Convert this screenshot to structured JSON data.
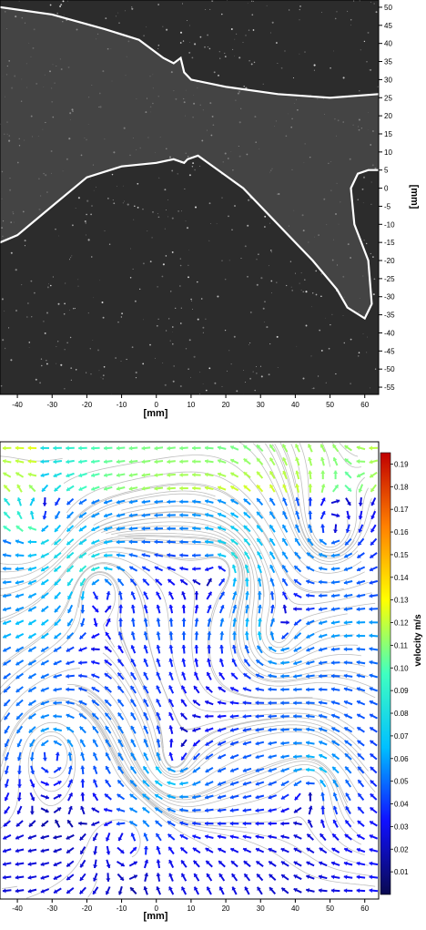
{
  "chart_data": [
    {
      "type": "image",
      "title": "",
      "xlabel": "[mm]",
      "ylabel": "[mm]",
      "xlim": [
        -45,
        64
      ],
      "ylim": [
        -57,
        52
      ],
      "x_ticks": [
        -40,
        -30,
        -20,
        -10,
        0,
        10,
        20,
        30,
        40,
        50,
        60
      ],
      "y_ticks": [
        50,
        45,
        40,
        35,
        30,
        25,
        20,
        15,
        10,
        5,
        0,
        -5,
        -10,
        -15,
        -20,
        -25,
        -30,
        -35,
        -40,
        -45,
        -50,
        -55
      ],
      "background": "#2c2c2c",
      "outline_color": "#ffffff",
      "upper_outline": [
        [
          -45,
          50
        ],
        [
          -30,
          48
        ],
        [
          -15,
          44
        ],
        [
          -5,
          41
        ],
        [
          2,
          36
        ],
        [
          5,
          34.5
        ],
        [
          7,
          36
        ],
        [
          8,
          32
        ],
        [
          10,
          30
        ],
        [
          20,
          28
        ],
        [
          35,
          26
        ],
        [
          50,
          25
        ],
        [
          64,
          26
        ]
      ],
      "lower_outline": [
        [
          -45,
          -15
        ],
        [
          -40,
          -13
        ],
        [
          -30,
          -5
        ],
        [
          -20,
          3
        ],
        [
          -10,
          6
        ],
        [
          0,
          7
        ],
        [
          5,
          8
        ],
        [
          8,
          7
        ],
        [
          9,
          8
        ],
        [
          12,
          9
        ],
        [
          25,
          0
        ],
        [
          35,
          -10
        ],
        [
          45,
          -20
        ],
        [
          52,
          -28
        ],
        [
          55,
          -33
        ],
        [
          60,
          -36
        ],
        [
          62,
          -32
        ],
        [
          61,
          -20
        ],
        [
          57,
          -10
        ],
        [
          56,
          0
        ],
        [
          58,
          4
        ],
        [
          61,
          5
        ],
        [
          64,
          5
        ]
      ]
    },
    {
      "type": "vector_field",
      "title": "",
      "xlabel": "[mm]",
      "ylabel": "",
      "xlim": [
        -45,
        64
      ],
      "ylim": [
        -57,
        52
      ],
      "x_ticks": [
        -40,
        -30,
        -20,
        -10,
        0,
        10,
        20,
        30,
        40,
        50,
        60
      ],
      "colorbar": {
        "label": "velocity m/s",
        "range": [
          0.0,
          0.195
        ],
        "ticks": [
          0.19,
          0.18,
          0.17,
          0.16,
          0.15,
          0.14,
          0.13,
          0.12,
          0.11,
          0.1,
          0.09,
          0.08,
          0.07,
          0.06,
          0.05,
          0.04,
          0.03,
          0.02,
          0.01
        ],
        "colormap": [
          "#0a0a50",
          "#1010ff",
          "#00c0ff",
          "#40ffc0",
          "#ffff00",
          "#ff8000",
          "#c00000"
        ]
      },
      "grid_nx": 30,
      "grid_ny": 34,
      "vortices": [
        {
          "x": -17,
          "y": 18,
          "strength": 1.0,
          "sign": 1
        },
        {
          "x": -34,
          "y": 32,
          "strength": 0.7,
          "sign": -1
        },
        {
          "x": 20,
          "y": 22,
          "strength": 0.8,
          "sign": 1
        },
        {
          "x": 35,
          "y": 5,
          "strength": 0.7,
          "sign": -1
        },
        {
          "x": -30,
          "y": -22,
          "strength": 0.8,
          "sign": 1
        },
        {
          "x": 5,
          "y": -25,
          "strength": 0.7,
          "sign": -1
        },
        {
          "x": -8,
          "y": -42,
          "strength": 0.6,
          "sign": 1
        },
        {
          "x": 45,
          "y": -30,
          "strength": 0.7,
          "sign": 1
        },
        {
          "x": 50,
          "y": 30,
          "strength": 0.6,
          "sign": -1
        }
      ]
    }
  ]
}
